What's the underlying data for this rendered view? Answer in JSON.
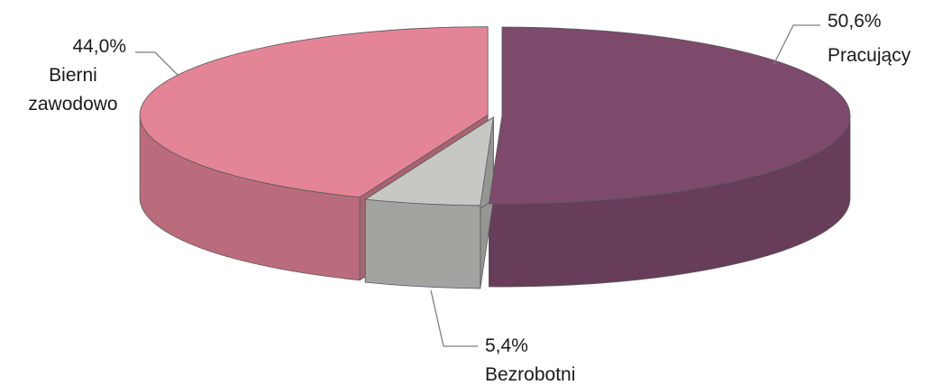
{
  "chart_data": {
    "type": "pie3d",
    "categories": [
      "Pracujący",
      "Bezrobotni",
      "Bierni zawodowo"
    ],
    "values": [
      50.6,
      5.4,
      44.0
    ],
    "value_labels": [
      "50,6%",
      "5,4%",
      "44,0%"
    ],
    "colors": [
      "#7d4a6c",
      "#c7c7c3",
      "#e48497"
    ]
  }
}
